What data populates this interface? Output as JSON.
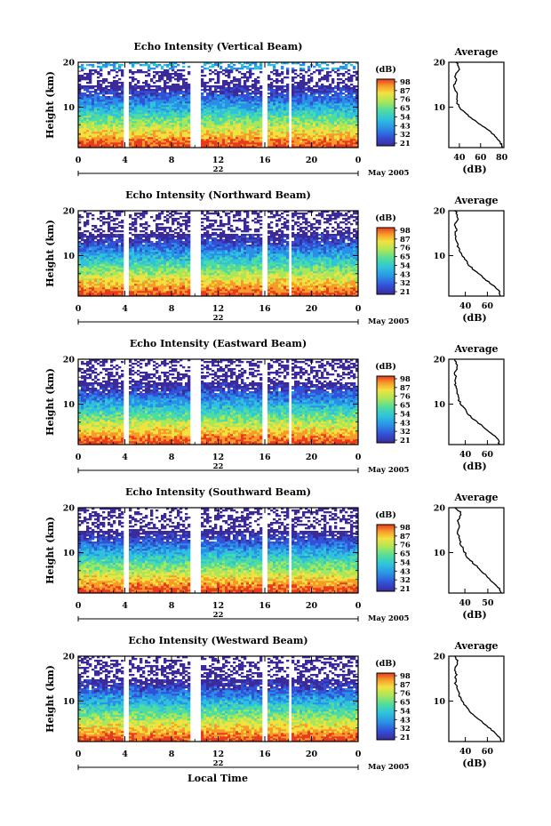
{
  "chart_data": [
    {
      "type": "heatmap",
      "title": "Echo Intensity (Vertical Beam)",
      "ylabel": "Height (km)",
      "xticks": [
        "0",
        "4",
        "8",
        "12",
        "16",
        "20",
        "0"
      ],
      "yticks": [
        "10",
        "20"
      ],
      "date_label": "22",
      "month_label": "May 2005",
      "xlim": [
        0,
        24
      ],
      "ylim": [
        1,
        20
      ],
      "colorbar": {
        "unit": "(dB)",
        "ticks": [
          "98",
          "87",
          "76",
          "65",
          "54",
          "43",
          "32",
          "21"
        ]
      },
      "data_gaps_hours": [
        [
          3.9,
          4.3
        ],
        [
          9.7,
          10.5
        ],
        [
          15.8,
          16.2
        ],
        [
          18.1,
          18.4
        ]
      ],
      "average_profile": {
        "title": "Average",
        "xlabel": "(dB)",
        "xticks": [
          "40",
          "60",
          "80"
        ],
        "xlim": [
          30,
          82
        ],
        "yticks": [
          "10",
          "20"
        ],
        "height_km": [
          1,
          2,
          3,
          4,
          5,
          6,
          7,
          8,
          9,
          10,
          11,
          12,
          13,
          14,
          15,
          16,
          17,
          18,
          19,
          20
        ],
        "intensity_db": [
          80,
          79,
          76,
          72,
          67,
          61,
          55,
          49,
          44,
          40,
          38,
          37,
          38,
          36,
          35,
          37,
          36,
          39,
          40,
          37
        ]
      }
    },
    {
      "type": "heatmap",
      "title": "Echo Intensity (Northward Beam)",
      "ylabel": "Height (km)",
      "xticks": [
        "0",
        "4",
        "8",
        "12",
        "16",
        "20",
        "0"
      ],
      "yticks": [
        "10",
        "20"
      ],
      "date_label": "22",
      "month_label": "May 2005",
      "xlim": [
        0,
        24
      ],
      "ylim": [
        1,
        20
      ],
      "colorbar": {
        "unit": "(dB)",
        "ticks": [
          "98",
          "87",
          "76",
          "65",
          "54",
          "43",
          "32",
          "21"
        ]
      },
      "data_gaps_hours": [
        [
          3.9,
          4.3
        ],
        [
          9.7,
          10.5
        ],
        [
          15.8,
          16.2
        ],
        [
          18.1,
          18.4
        ]
      ],
      "average_profile": {
        "title": "Average",
        "xlabel": "(dB)",
        "xticks": [
          "40",
          "60"
        ],
        "xlim": [
          25,
          75
        ],
        "yticks": [
          "10",
          "20"
        ],
        "height_km": [
          1,
          2,
          3,
          4,
          5,
          6,
          7,
          8,
          9,
          10,
          11,
          12,
          13,
          14,
          15,
          16,
          17,
          18,
          19,
          20
        ],
        "intensity_db": [
          72,
          71,
          67,
          62,
          57,
          52,
          47,
          43,
          40,
          37,
          35,
          33,
          33,
          31,
          31,
          32,
          30,
          33,
          33,
          31
        ]
      }
    },
    {
      "type": "heatmap",
      "title": "Echo Intensity (Eastward Beam)",
      "ylabel": "Height (km)",
      "xticks": [
        "0",
        "4",
        "8",
        "12",
        "16",
        "20",
        "0"
      ],
      "yticks": [
        "10",
        "20"
      ],
      "date_label": "22",
      "month_label": "May 2005",
      "xlim": [
        0,
        24
      ],
      "ylim": [
        1,
        20
      ],
      "colorbar": {
        "unit": "(dB)",
        "ticks": [
          "98",
          "87",
          "76",
          "65",
          "54",
          "43",
          "32",
          "21"
        ]
      },
      "data_gaps_hours": [
        [
          3.9,
          4.3
        ],
        [
          9.7,
          10.5
        ],
        [
          15.8,
          16.2
        ],
        [
          18.1,
          18.4
        ]
      ],
      "average_profile": {
        "title": "Average",
        "xlabel": "(dB)",
        "xticks": [
          "40",
          "60"
        ],
        "xlim": [
          25,
          75
        ],
        "yticks": [
          "10",
          "20"
        ],
        "height_km": [
          1,
          2,
          3,
          4,
          5,
          6,
          7,
          8,
          9,
          10,
          11,
          12,
          13,
          14,
          15,
          16,
          17,
          18,
          19,
          20
        ],
        "intensity_db": [
          71,
          70,
          66,
          61,
          56,
          51,
          46,
          42,
          39,
          36,
          34,
          33,
          33,
          31,
          31,
          32,
          30,
          33,
          32,
          30
        ]
      }
    },
    {
      "type": "heatmap",
      "title": "Echo Intensity (Southward Beam)",
      "ylabel": "Height (km)",
      "xticks": [
        "0",
        "4",
        "8",
        "12",
        "16",
        "20",
        "0"
      ],
      "yticks": [
        "10",
        "20"
      ],
      "date_label": "22",
      "month_label": "May 2005",
      "xlim": [
        0,
        24
      ],
      "ylim": [
        1,
        20
      ],
      "colorbar": {
        "unit": "(dB)",
        "ticks": [
          "98",
          "87",
          "76",
          "65",
          "54",
          "43",
          "32",
          "21"
        ]
      },
      "data_gaps_hours": [
        [
          3.9,
          4.3
        ],
        [
          9.7,
          10.5
        ],
        [
          15.8,
          16.2
        ],
        [
          18.1,
          18.4
        ]
      ],
      "average_profile": {
        "title": "Average",
        "xlabel": "(dB)",
        "xticks": [
          "40",
          "50"
        ],
        "xlim": [
          33,
          57
        ],
        "yticks": [
          "10",
          "20"
        ],
        "height_km": [
          1,
          2,
          3,
          4,
          5,
          6,
          7,
          8,
          9,
          10,
          11,
          12,
          13,
          14,
          15,
          16,
          17,
          18,
          19,
          20
        ],
        "intensity_db": [
          56,
          55,
          53,
          51,
          49,
          47,
          45,
          43,
          41,
          40,
          39,
          38,
          38,
          37,
          37,
          38,
          37,
          38,
          38,
          36
        ]
      }
    },
    {
      "type": "heatmap",
      "title": "Echo Intensity (Westward Beam)",
      "ylabel": "Height (km)",
      "xticks": [
        "0",
        "4",
        "8",
        "12",
        "16",
        "20",
        "0"
      ],
      "yticks": [
        "10",
        "20"
      ],
      "date_label": "22",
      "month_label": "May 2005",
      "xlim": [
        0,
        24
      ],
      "ylim": [
        1,
        20
      ],
      "colorbar": {
        "unit": "(dB)",
        "ticks": [
          "98",
          "87",
          "76",
          "65",
          "54",
          "43",
          "32",
          "21"
        ]
      },
      "data_gaps_hours": [
        [
          3.9,
          4.3
        ],
        [
          9.7,
          10.5
        ],
        [
          15.8,
          16.2
        ],
        [
          18.1,
          18.4
        ]
      ],
      "average_profile": {
        "title": "Average",
        "xlabel": "(dB)",
        "xticks": [
          "40",
          "60"
        ],
        "xlim": [
          25,
          75
        ],
        "yticks": [
          "10",
          "20"
        ],
        "height_km": [
          1,
          2,
          3,
          4,
          5,
          6,
          7,
          8,
          9,
          10,
          11,
          12,
          13,
          14,
          15,
          16,
          17,
          18,
          19,
          20
        ],
        "intensity_db": [
          72,
          71,
          67,
          62,
          57,
          52,
          47,
          43,
          40,
          37,
          35,
          34,
          33,
          31,
          31,
          32,
          30,
          33,
          33,
          30
        ]
      }
    }
  ],
  "figure": {
    "xlabel": "Local Time"
  },
  "colors": {
    "colormap": [
      "#3a2a9a",
      "#3350d8",
      "#2a8fe6",
      "#2ec2dc",
      "#4fdca0",
      "#a8e65a",
      "#f2e240",
      "#f79a2a",
      "#e83a1e"
    ],
    "line": "#000000"
  }
}
